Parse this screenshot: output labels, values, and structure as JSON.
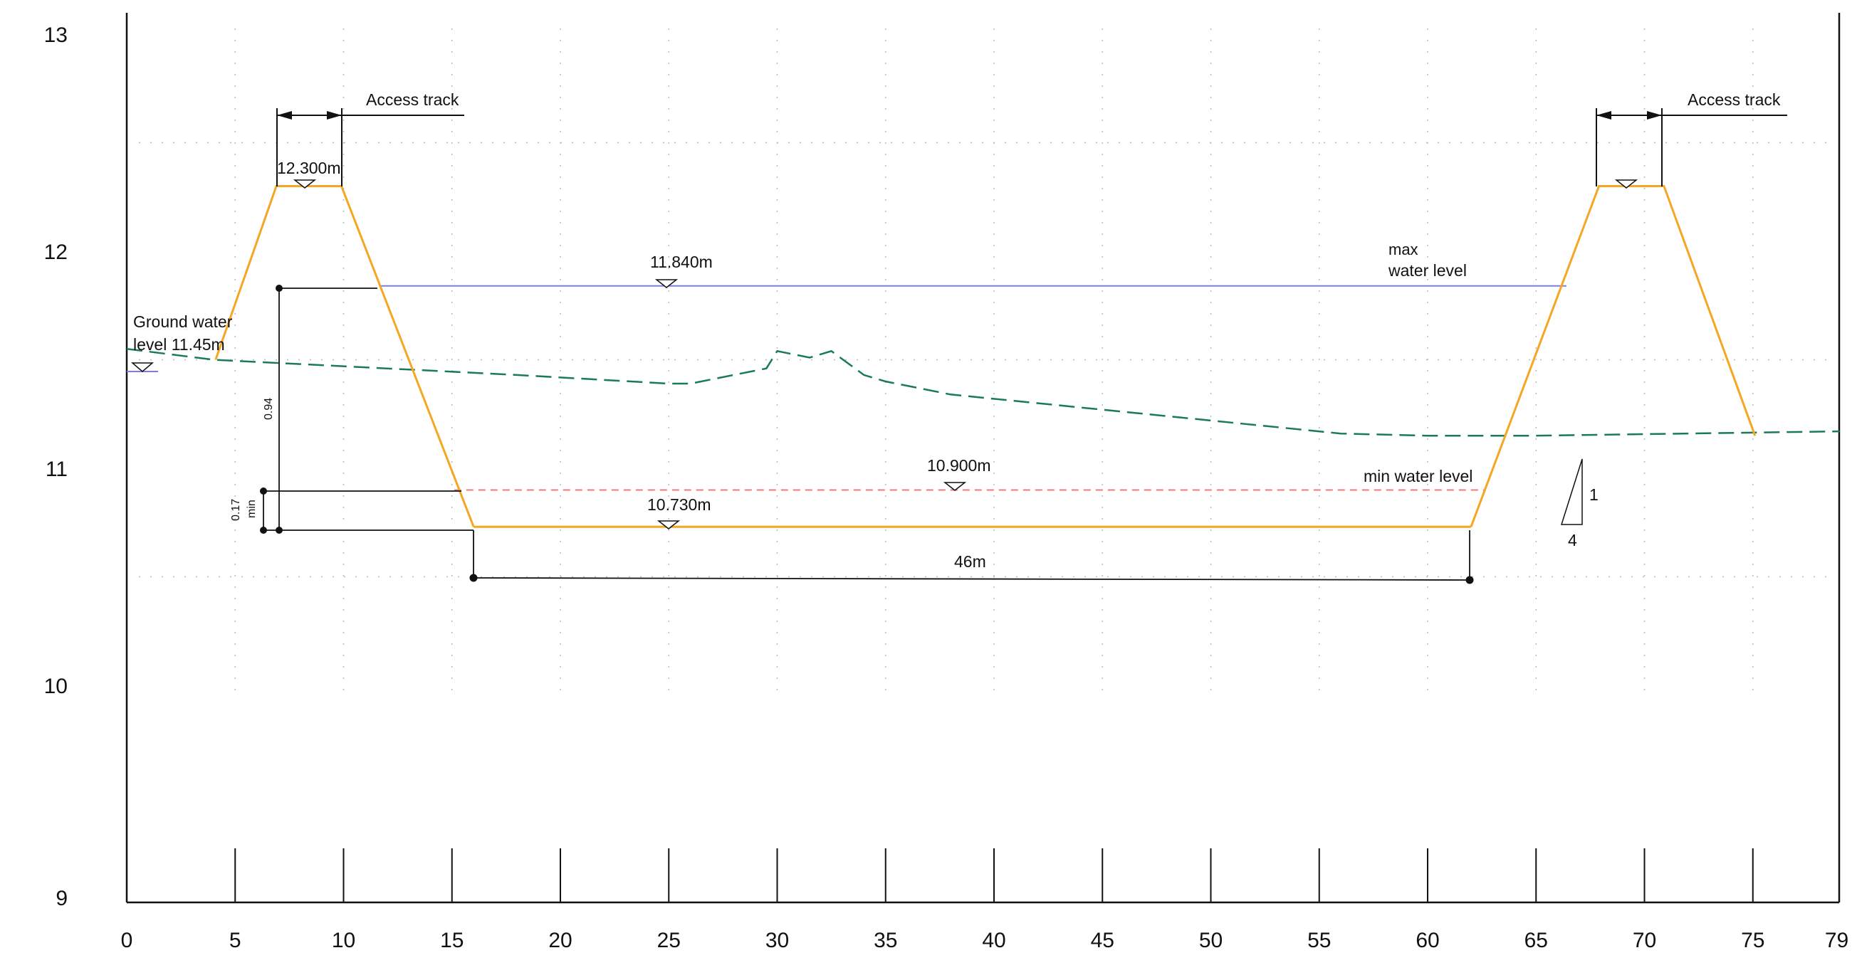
{
  "axes": {
    "x_ticks": [
      "0",
      "5",
      "10",
      "15",
      "20",
      "25",
      "30",
      "35",
      "40",
      "45",
      "50",
      "55",
      "60",
      "65",
      "70",
      "75",
      "79"
    ],
    "y_ticks": [
      "9",
      "10",
      "11",
      "12",
      "13"
    ],
    "x_range": [
      0,
      79
    ],
    "y_range": [
      9,
      13.2
    ]
  },
  "labels": {
    "access_track_left": "Access track",
    "access_track_right": "Access track",
    "crest_level": "12.300m",
    "max_level_value": "11.840m",
    "max_level_text_1": "max",
    "max_level_text_2": "water level",
    "groundwater_1": "Ground water",
    "groundwater_2": "level 11.45m",
    "min_level_value": "10.900m",
    "min_level_text": "min water level",
    "bottom_level": "10.730m",
    "width_dim": "46m",
    "dim_094": "0.94",
    "dim_017": "0.17",
    "dim_min": "min",
    "slope_rise": "1",
    "slope_run": "4"
  },
  "colors": {
    "embankment": "#f5a623",
    "max_water": "#7b7bf0",
    "min_water": "#f07878",
    "groundwater": "#1a7a5a",
    "dimension": "#111111",
    "grid": "#bbbbbb"
  },
  "chart_data": {
    "type": "cross-section",
    "left_embankment": [
      [
        4.1,
        11.5
      ],
      [
        6.9,
        12.3
      ],
      [
        9.9,
        12.3
      ],
      [
        16.0,
        10.73
      ]
    ],
    "bottom": [
      [
        16.0,
        10.73
      ],
      [
        62.0,
        10.73
      ]
    ],
    "right_embankment": [
      [
        62.0,
        10.73
      ],
      [
        67.9,
        12.3
      ],
      [
        70.9,
        12.3
      ],
      [
        75.1,
        11.15
      ]
    ],
    "max_water_level": {
      "y": 11.84,
      "x_range": [
        11.7,
        66.4
      ]
    },
    "min_water_level": {
      "y": 10.9,
      "x_range": [
        15.1,
        62.6
      ]
    },
    "groundwater_profile": [
      [
        0,
        11.55
      ],
      [
        4,
        11.5
      ],
      [
        12,
        11.46
      ],
      [
        18,
        11.43
      ],
      [
        25,
        11.39
      ],
      [
        26,
        11.39
      ],
      [
        29.5,
        11.46
      ],
      [
        30,
        11.54
      ],
      [
        31.5,
        11.51
      ],
      [
        32.5,
        11.54
      ],
      [
        34,
        11.43
      ],
      [
        35,
        11.4
      ],
      [
        38,
        11.34
      ],
      [
        42,
        11.3
      ],
      [
        50,
        11.22
      ],
      [
        56,
        11.16
      ],
      [
        60,
        11.15
      ],
      [
        65,
        11.15
      ],
      [
        79,
        11.17
      ]
    ],
    "groundwater_level": 11.45
  }
}
